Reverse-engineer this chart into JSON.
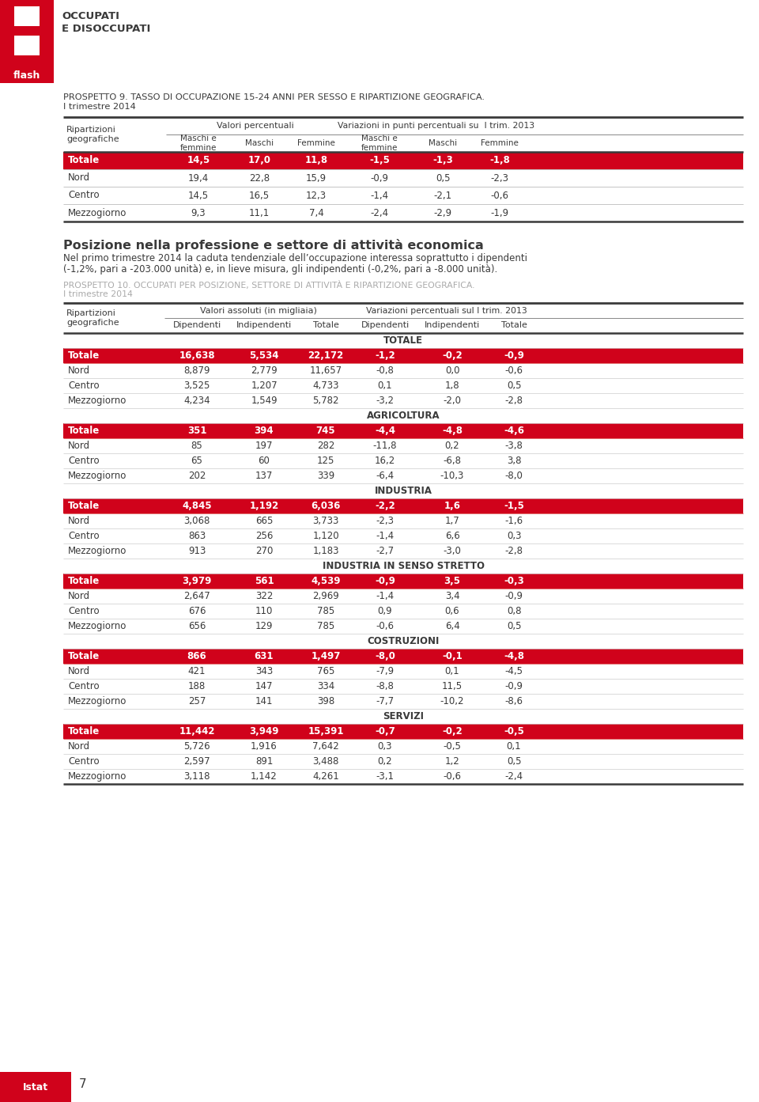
{
  "page_title1": "PROSPETTO 9. TASSO DI OCCUPAZIONE 15-24 ANNI PER SESSO E RIPARTIZIONE GEOGRAFICA.",
  "page_title2": "I trimestre 2014",
  "table1_header_group1": "Valori percentuali",
  "table1_header_group2": "Variazioni in punti percentuali su  I trim. 2013",
  "table1_sub_cols": [
    "Maschi e\nfemmine",
    "Maschi",
    "Femmine",
    "Maschi e\nfemmine",
    "Maschi",
    "Femmine"
  ],
  "table1_rows": [
    [
      "Totale",
      "14,5",
      "17,0",
      "11,8",
      "-1,5",
      "-1,3",
      "-1,8"
    ],
    [
      "Nord",
      "19,4",
      "22,8",
      "15,9",
      "-0,9",
      "0,5",
      "-2,3"
    ],
    [
      "Centro",
      "14,5",
      "16,5",
      "12,3",
      "-1,4",
      "-2,1",
      "-0,6"
    ],
    [
      "Mezzogiorno",
      "9,3",
      "11,1",
      "7,4",
      "-2,4",
      "-2,9",
      "-1,9"
    ]
  ],
  "section_title": "Posizione nella professione e settore di attività economica",
  "section_body1": "Nel primo trimestre 2014 la caduta tendenziale dell’occupazione interessa soprattutto i dipendenti",
  "section_body2": "(-1,2%, pari a -203.000 unità) e, in lieve misura, gli indipendenti (-0,2%, pari a -8.000 unità).",
  "table2_title1": "PROSPETTO 10. OCCUPATI PER POSIZIONE, SETTORE DI ATTIVITÀ E RIPARTIZIONE GEOGRAFICA.",
  "table2_title2": "I trimestre 2014",
  "table2_header_group1": "Valori assoluti (in migliaia)",
  "table2_header_group2": "Variazioni percentuali sul I trim. 2013",
  "table2_sub_cols": [
    "Dipendenti",
    "Indipendenti",
    "Totale",
    "Dipendenti",
    "Indipendenti",
    "Totale"
  ],
  "table2_sections": [
    {
      "name": "TOTALE",
      "totale_row": [
        "Totale",
        "16,638",
        "5,534",
        "22,172",
        "-1,2",
        "-0,2",
        "-0,9"
      ],
      "rows": [
        [
          "Nord",
          "8,879",
          "2,779",
          "11,657",
          "-0,8",
          "0,0",
          "-0,6"
        ],
        [
          "Centro",
          "3,525",
          "1,207",
          "4,733",
          "0,1",
          "1,8",
          "0,5"
        ],
        [
          "Mezzogiorno",
          "4,234",
          "1,549",
          "5,782",
          "-3,2",
          "-2,0",
          "-2,8"
        ]
      ]
    },
    {
      "name": "AGRICOLTURA",
      "totale_row": [
        "Totale",
        "351",
        "394",
        "745",
        "-4,4",
        "-4,8",
        "-4,6"
      ],
      "rows": [
        [
          "Nord",
          "85",
          "197",
          "282",
          "-11,8",
          "0,2",
          "-3,8"
        ],
        [
          "Centro",
          "65",
          "60",
          "125",
          "16,2",
          "-6,8",
          "3,8"
        ],
        [
          "Mezzogiorno",
          "202",
          "137",
          "339",
          "-6,4",
          "-10,3",
          "-8,0"
        ]
      ]
    },
    {
      "name": "INDUSTRIA",
      "totale_row": [
        "Totale",
        "4,845",
        "1,192",
        "6,036",
        "-2,2",
        "1,6",
        "-1,5"
      ],
      "rows": [
        [
          "Nord",
          "3,068",
          "665",
          "3,733",
          "-2,3",
          "1,7",
          "-1,6"
        ],
        [
          "Centro",
          "863",
          "256",
          "1,120",
          "-1,4",
          "6,6",
          "0,3"
        ],
        [
          "Mezzogiorno",
          "913",
          "270",
          "1,183",
          "-2,7",
          "-3,0",
          "-2,8"
        ]
      ]
    },
    {
      "name": "INDUSTRIA IN SENSO STRETTO",
      "totale_row": [
        "Totale",
        "3,979",
        "561",
        "4,539",
        "-0,9",
        "3,5",
        "-0,3"
      ],
      "rows": [
        [
          "Nord",
          "2,647",
          "322",
          "2,969",
          "-1,4",
          "3,4",
          "-0,9"
        ],
        [
          "Centro",
          "676",
          "110",
          "785",
          "0,9",
          "0,6",
          "0,8"
        ],
        [
          "Mezzogiorno",
          "656",
          "129",
          "785",
          "-0,6",
          "6,4",
          "0,5"
        ]
      ]
    },
    {
      "name": "COSTRUZIONI",
      "totale_row": [
        "Totale",
        "866",
        "631",
        "1,497",
        "-8,0",
        "-0,1",
        "-4,8"
      ],
      "rows": [
        [
          "Nord",
          "421",
          "343",
          "765",
          "-7,9",
          "0,1",
          "-4,5"
        ],
        [
          "Centro",
          "188",
          "147",
          "334",
          "-8,8",
          "11,5",
          "-0,9"
        ],
        [
          "Mezzogiorno",
          "257",
          "141",
          "398",
          "-7,7",
          "-10,2",
          "-8,6"
        ]
      ]
    },
    {
      "name": "SERVIZI",
      "totale_row": [
        "Totale",
        "11,442",
        "3,949",
        "15,391",
        "-0,7",
        "-0,2",
        "-0,5"
      ],
      "rows": [
        [
          "Nord",
          "5,726",
          "1,916",
          "7,642",
          "0,3",
          "-0,5",
          "0,1"
        ],
        [
          "Centro",
          "2,597",
          "891",
          "3,488",
          "0,2",
          "1,2",
          "0,5"
        ],
        [
          "Mezzogiorno",
          "3,118",
          "1,142",
          "4,261",
          "-3,1",
          "-0,6",
          "-2,4"
        ]
      ]
    }
  ],
  "red_color": "#d0021b",
  "white": "#ffffff",
  "black": "#1a1a1a",
  "dark_gray": "#3a3a3a",
  "mid_gray": "#888888",
  "logo_h_color": "#ffffff",
  "footer_page": "7"
}
